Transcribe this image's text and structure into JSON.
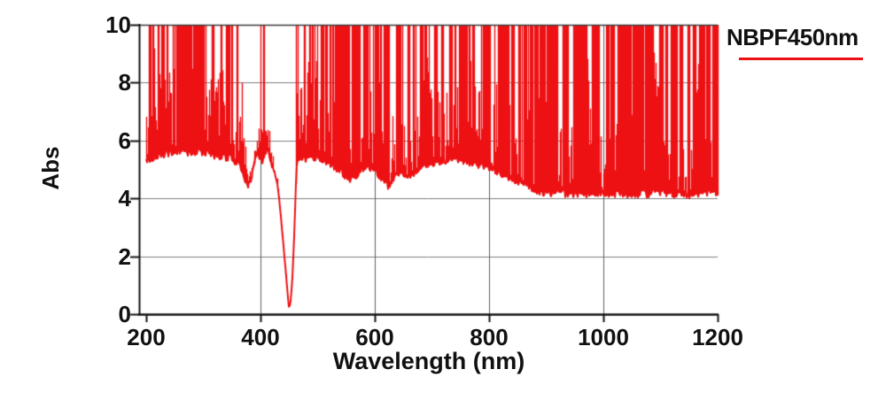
{
  "chart_data": {
    "type": "line",
    "title": "",
    "xlabel": "Wavelength (nm)",
    "ylabel": "Abs",
    "xlim": [
      200,
      1200
    ],
    "ylim": [
      0,
      10
    ],
    "xticks": [
      200,
      400,
      600,
      800,
      1000,
      1200
    ],
    "yticks": [
      0,
      2,
      4,
      6,
      8,
      10
    ],
    "grid": true,
    "legend": {
      "label": "NBPF450nm",
      "position": "top-right"
    },
    "colors": {
      "line": "#ee1114",
      "grid_h": "#7e7e7e",
      "grid_v": "#5f5f5f",
      "axis": "#141414",
      "top_border": "#3c3c3c",
      "text": "#111111"
    },
    "series": [
      {
        "name": "NBPF450nm",
        "color": "#ee1114",
        "blocking_abs_clip": 10,
        "passband": {
          "center_nm": 450,
          "min_abs": 0.15
        },
        "lower_envelope": [
          [
            200,
            5.15
          ],
          [
            215,
            5.3
          ],
          [
            230,
            5.4
          ],
          [
            245,
            5.45
          ],
          [
            260,
            5.5
          ],
          [
            275,
            5.45
          ],
          [
            290,
            5.5
          ],
          [
            305,
            5.45
          ],
          [
            320,
            5.35
          ],
          [
            335,
            5.3
          ],
          [
            350,
            5.25
          ],
          [
            362,
            5.05
          ],
          [
            370,
            4.7
          ],
          [
            378,
            4.35
          ],
          [
            384,
            4.6
          ],
          [
            390,
            5.2
          ],
          [
            395,
            5.55
          ],
          [
            399,
            5.3
          ],
          [
            403,
            5.15
          ],
          [
            407,
            5.45
          ],
          [
            411,
            5.6
          ],
          [
            415,
            5.4
          ],
          [
            419,
            5.1
          ],
          [
            424,
            4.85
          ],
          [
            428,
            4.55
          ],
          [
            432,
            4.1
          ],
          [
            436,
            3.3
          ],
          [
            440,
            2.4
          ],
          [
            444,
            1.5
          ],
          [
            447,
            0.8
          ],
          [
            450,
            0.15
          ],
          [
            453,
            0.45
          ],
          [
            456,
            1.3
          ],
          [
            459,
            2.7
          ],
          [
            461,
            3.9
          ],
          [
            464,
            5.1
          ],
          [
            470,
            5.2
          ],
          [
            480,
            5.25
          ],
          [
            495,
            5.3
          ],
          [
            510,
            5.2
          ],
          [
            525,
            5.05
          ],
          [
            540,
            4.8
          ],
          [
            552,
            4.5
          ],
          [
            558,
            4.45
          ],
          [
            565,
            4.6
          ],
          [
            575,
            4.85
          ],
          [
            585,
            5.0
          ],
          [
            595,
            4.9
          ],
          [
            605,
            4.7
          ],
          [
            615,
            4.45
          ],
          [
            622,
            4.3
          ],
          [
            630,
            4.45
          ],
          [
            638,
            4.7
          ],
          [
            645,
            4.85
          ],
          [
            652,
            4.7
          ],
          [
            658,
            4.55
          ],
          [
            665,
            4.65
          ],
          [
            675,
            4.9
          ],
          [
            690,
            5.05
          ],
          [
            710,
            5.15
          ],
          [
            730,
            5.2
          ],
          [
            750,
            5.2
          ],
          [
            770,
            5.1
          ],
          [
            790,
            5.0
          ],
          [
            810,
            4.85
          ],
          [
            830,
            4.65
          ],
          [
            850,
            4.45
          ],
          [
            870,
            4.25
          ],
          [
            890,
            4.1
          ],
          [
            920,
            4.05
          ],
          [
            960,
            4.0
          ],
          [
            1000,
            4.05
          ],
          [
            1050,
            4.0
          ],
          [
            1100,
            4.05
          ],
          [
            1150,
            4.0
          ],
          [
            1200,
            4.1
          ]
        ]
      }
    ],
    "spike_model": {
      "seed": 20,
      "clip_abs": 10,
      "forced_full_spikes_nm": [
        399.5,
        405.5
      ],
      "regions": [
        {
          "from": 200,
          "to": 376,
          "spike_prob": 0.48,
          "cluster": 0.22,
          "top": "clip",
          "mid_top_max": 3.0,
          "floor_jitter": 0.28,
          "mound_amp": 1.0
        },
        {
          "from": 376,
          "to": 396,
          "spike_prob": 0.35,
          "cluster": 0.1,
          "top": "env+",
          "cap_above_env": 0.55,
          "mid_top_max": 0.45,
          "floor_jitter": 0.18,
          "mound_amp": 0
        },
        {
          "from": 396,
          "to": 417,
          "spike_prob": 0.55,
          "cluster": 0.1,
          "top": "abs",
          "cap_abs": 6.6,
          "mid_top_max": 0.9,
          "floor_jitter": 0.2,
          "mound_amp": 0
        },
        {
          "from": 417,
          "to": 434,
          "spike_prob": 0.3,
          "cluster": 0.1,
          "top": "env+",
          "cap_above_env": 0.5,
          "mid_top_max": 0.35,
          "floor_jitter": 0.12,
          "mound_amp": 0
        },
        {
          "from": 434,
          "to": 461,
          "spike_prob": 0.0,
          "cluster": 0.0,
          "top": "env+",
          "cap_above_env": 0.06,
          "mid_top_max": 0.06,
          "floor_jitter": 0.04,
          "mound_amp": 0
        },
        {
          "from": 461,
          "to": 870,
          "spike_prob": 0.5,
          "cluster": 0.22,
          "top": "clip",
          "mid_top_max": 2.8,
          "floor_jitter": 0.28,
          "mound_amp": 1.2
        },
        {
          "from": 870,
          "to": 1201,
          "spike_prob": 0.56,
          "cluster": 0.3,
          "top": "clip",
          "mid_top_max": 2.4,
          "floor_jitter": 0.3,
          "mound_amp": 2.7
        }
      ]
    }
  }
}
